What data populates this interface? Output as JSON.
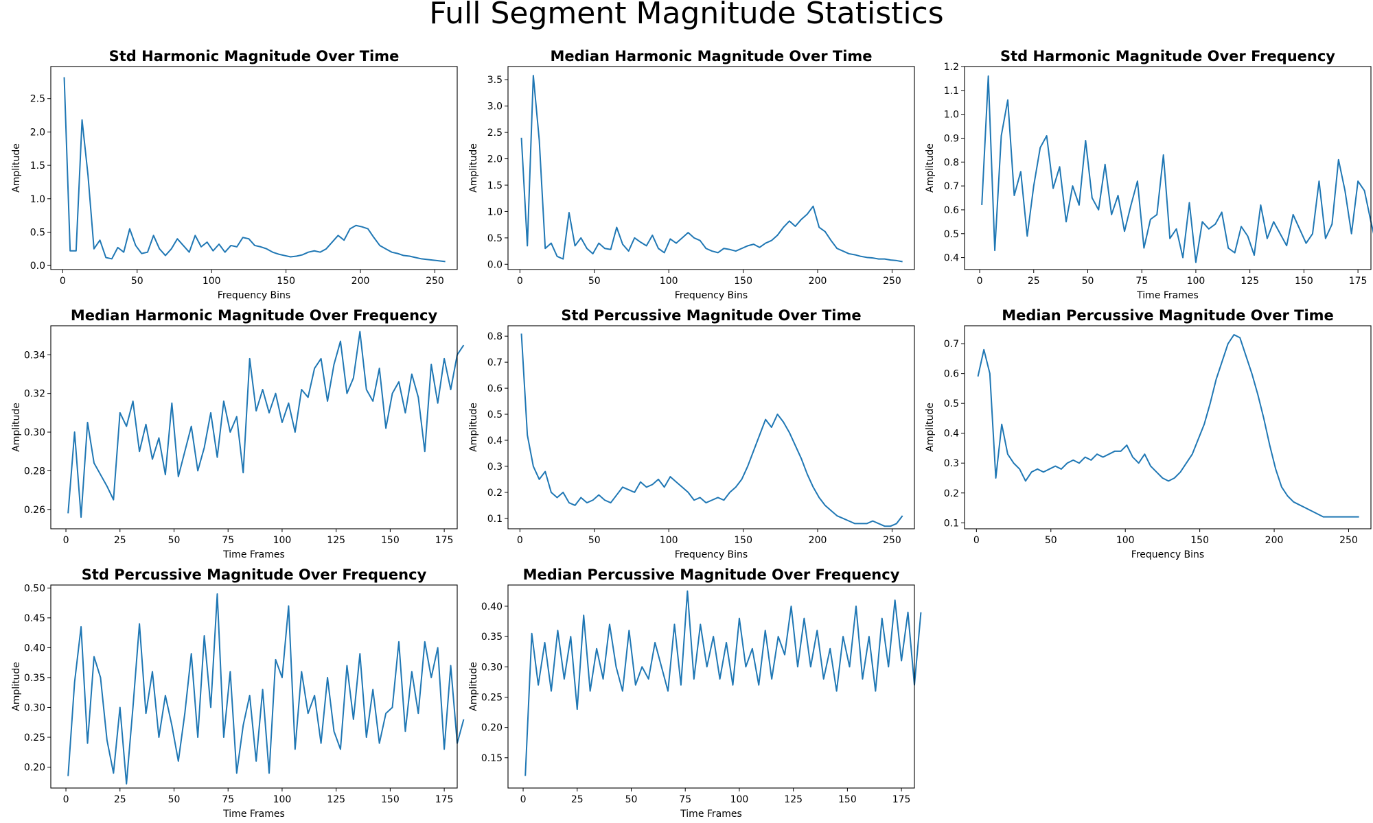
{
  "figure": {
    "title": "Full Segment Magnitude Statistics"
  },
  "chart_data": [
    {
      "type": "line",
      "title": "Std Harmonic Magnitude Over Time",
      "xlabel": "Frequency Bins",
      "ylabel": "Amplitude",
      "xlim": [
        -8,
        265
      ],
      "ylim": [
        -0.06,
        2.98
      ],
      "xticks": [
        0,
        50,
        100,
        150,
        200,
        250
      ],
      "yticks": [
        0.0,
        0.5,
        1.0,
        1.5,
        2.0,
        2.5
      ],
      "tick_decimals": 1,
      "color": "#1f77b4",
      "series": [
        {
          "x_start": 1,
          "x_step": 4,
          "values": [
            2.82,
            0.22,
            0.22,
            2.18,
            1.35,
            0.25,
            0.38,
            0.12,
            0.1,
            0.27,
            0.2,
            0.55,
            0.3,
            0.18,
            0.2,
            0.45,
            0.25,
            0.15,
            0.25,
            0.4,
            0.3,
            0.2,
            0.45,
            0.28,
            0.35,
            0.22,
            0.32,
            0.2,
            0.3,
            0.28,
            0.42,
            0.4,
            0.3,
            0.28,
            0.25,
            0.2,
            0.17,
            0.15,
            0.13,
            0.14,
            0.16,
            0.2,
            0.22,
            0.2,
            0.25,
            0.35,
            0.45,
            0.38,
            0.55,
            0.6,
            0.58,
            0.55,
            0.42,
            0.3,
            0.25,
            0.2,
            0.18,
            0.15,
            0.14,
            0.12,
            0.1,
            0.09,
            0.08,
            0.07,
            0.06
          ]
        }
      ]
    },
    {
      "type": "line",
      "title": "Median Harmonic Magnitude Over Time",
      "xlabel": "Frequency Bins",
      "ylabel": "Amplitude",
      "xlim": [
        -8,
        265
      ],
      "ylim": [
        -0.1,
        3.75
      ],
      "xticks": [
        0,
        50,
        100,
        150,
        200,
        250
      ],
      "yticks": [
        0.0,
        0.5,
        1.0,
        1.5,
        2.0,
        2.5,
        3.0,
        3.5
      ],
      "tick_decimals": 1,
      "color": "#1f77b4",
      "series": [
        {
          "x_start": 1,
          "x_step": 4,
          "values": [
            2.4,
            0.35,
            3.58,
            2.35,
            0.3,
            0.4,
            0.15,
            0.1,
            0.98,
            0.35,
            0.5,
            0.3,
            0.2,
            0.4,
            0.3,
            0.28,
            0.7,
            0.38,
            0.25,
            0.5,
            0.42,
            0.35,
            0.55,
            0.3,
            0.22,
            0.48,
            0.4,
            0.5,
            0.6,
            0.5,
            0.45,
            0.3,
            0.25,
            0.22,
            0.3,
            0.28,
            0.25,
            0.3,
            0.35,
            0.38,
            0.32,
            0.4,
            0.45,
            0.55,
            0.7,
            0.82,
            0.72,
            0.85,
            0.95,
            1.1,
            0.7,
            0.62,
            0.45,
            0.3,
            0.25,
            0.2,
            0.18,
            0.15,
            0.13,
            0.12,
            0.1,
            0.1,
            0.08,
            0.07,
            0.05
          ]
        }
      ]
    },
    {
      "type": "line",
      "title": "Std Harmonic Magnitude Over Frequency",
      "xlabel": "Time Frames",
      "ylabel": "Amplitude",
      "xlim": [
        -7,
        181
      ],
      "ylim": [
        0.35,
        1.2
      ],
      "xticks": [
        0,
        25,
        50,
        75,
        100,
        125,
        150,
        175
      ],
      "yticks": [
        0.4,
        0.5,
        0.6,
        0.7,
        0.8,
        0.9,
        1.0,
        1.1,
        1.2
      ],
      "tick_decimals": 1,
      "color": "#1f77b4",
      "series": [
        {
          "x_start": 1,
          "x_step": 3,
          "values": [
            0.62,
            1.16,
            0.43,
            0.91,
            1.06,
            0.66,
            0.76,
            0.49,
            0.7,
            0.86,
            0.91,
            0.69,
            0.78,
            0.55,
            0.7,
            0.62,
            0.89,
            0.65,
            0.6,
            0.79,
            0.58,
            0.66,
            0.51,
            0.62,
            0.72,
            0.44,
            0.56,
            0.58,
            0.83,
            0.48,
            0.52,
            0.4,
            0.63,
            0.38,
            0.55,
            0.52,
            0.54,
            0.59,
            0.44,
            0.42,
            0.53,
            0.49,
            0.41,
            0.62,
            0.48,
            0.55,
            0.5,
            0.45,
            0.58,
            0.52,
            0.46,
            0.5,
            0.72,
            0.48,
            0.54,
            0.81,
            0.68,
            0.5,
            0.72,
            0.68,
            0.55,
            0.43
          ]
        }
      ]
    },
    {
      "type": "line",
      "title": "Median Harmonic Magnitude Over Frequency",
      "xlabel": "Time Frames",
      "ylabel": "Amplitude",
      "xlim": [
        -7,
        181
      ],
      "ylim": [
        0.25,
        0.355
      ],
      "xticks": [
        0,
        25,
        50,
        75,
        100,
        125,
        150,
        175
      ],
      "yticks": [
        0.26,
        0.28,
        0.3,
        0.32,
        0.34
      ],
      "tick_decimals": 2,
      "color": "#1f77b4",
      "series": [
        {
          "x_start": 1,
          "x_step": 3,
          "values": [
            0.258,
            0.3,
            0.256,
            0.305,
            0.284,
            0.278,
            0.272,
            0.265,
            0.31,
            0.303,
            0.316,
            0.29,
            0.304,
            0.286,
            0.297,
            0.278,
            0.315,
            0.277,
            0.29,
            0.303,
            0.28,
            0.292,
            0.31,
            0.287,
            0.316,
            0.3,
            0.308,
            0.279,
            0.338,
            0.311,
            0.322,
            0.31,
            0.32,
            0.305,
            0.315,
            0.3,
            0.322,
            0.318,
            0.333,
            0.338,
            0.316,
            0.335,
            0.347,
            0.32,
            0.328,
            0.352,
            0.322,
            0.316,
            0.333,
            0.302,
            0.32,
            0.326,
            0.31,
            0.33,
            0.318,
            0.29,
            0.335,
            0.315,
            0.338,
            0.322,
            0.34,
            0.345
          ]
        }
      ]
    },
    {
      "type": "line",
      "title": "Std Percussive Magnitude Over Time",
      "xlabel": "Frequency Bins",
      "ylabel": "Amplitude",
      "xlim": [
        -8,
        265
      ],
      "ylim": [
        0.06,
        0.84
      ],
      "xticks": [
        0,
        50,
        100,
        150,
        200,
        250
      ],
      "yticks": [
        0.1,
        0.2,
        0.3,
        0.4,
        0.5,
        0.6,
        0.7,
        0.8
      ],
      "tick_decimals": 1,
      "color": "#1f77b4",
      "series": [
        {
          "x_start": 1,
          "x_step": 4,
          "values": [
            0.81,
            0.42,
            0.3,
            0.25,
            0.28,
            0.2,
            0.18,
            0.2,
            0.16,
            0.15,
            0.18,
            0.16,
            0.17,
            0.19,
            0.17,
            0.16,
            0.19,
            0.22,
            0.21,
            0.2,
            0.24,
            0.22,
            0.23,
            0.25,
            0.22,
            0.26,
            0.24,
            0.22,
            0.2,
            0.17,
            0.18,
            0.16,
            0.17,
            0.18,
            0.17,
            0.2,
            0.22,
            0.25,
            0.3,
            0.36,
            0.42,
            0.48,
            0.45,
            0.5,
            0.47,
            0.43,
            0.38,
            0.33,
            0.27,
            0.22,
            0.18,
            0.15,
            0.13,
            0.11,
            0.1,
            0.09,
            0.08,
            0.08,
            0.08,
            0.09,
            0.08,
            0.07,
            0.07,
            0.08,
            0.11
          ]
        }
      ]
    },
    {
      "type": "line",
      "title": "Median Percussive Magnitude Over Time",
      "xlabel": "Frequency Bins",
      "ylabel": "Amplitude",
      "xlim": [
        -8,
        265
      ],
      "ylim": [
        0.08,
        0.76
      ],
      "xticks": [
        0,
        50,
        100,
        150,
        200,
        250
      ],
      "yticks": [
        0.1,
        0.2,
        0.3,
        0.4,
        0.5,
        0.6,
        0.7
      ],
      "tick_decimals": 1,
      "color": "#1f77b4",
      "series": [
        {
          "x_start": 1,
          "x_step": 4,
          "values": [
            0.59,
            0.68,
            0.6,
            0.25,
            0.43,
            0.33,
            0.3,
            0.28,
            0.24,
            0.27,
            0.28,
            0.27,
            0.28,
            0.29,
            0.28,
            0.3,
            0.31,
            0.3,
            0.32,
            0.31,
            0.33,
            0.32,
            0.33,
            0.34,
            0.34,
            0.36,
            0.32,
            0.3,
            0.33,
            0.29,
            0.27,
            0.25,
            0.24,
            0.25,
            0.27,
            0.3,
            0.33,
            0.38,
            0.43,
            0.5,
            0.58,
            0.64,
            0.7,
            0.73,
            0.72,
            0.66,
            0.6,
            0.53,
            0.45,
            0.36,
            0.28,
            0.22,
            0.19,
            0.17,
            0.16,
            0.15,
            0.14,
            0.13,
            0.12,
            0.12,
            0.12,
            0.12,
            0.12,
            0.12,
            0.12
          ]
        }
      ]
    },
    {
      "type": "line",
      "title": "Std Percussive Magnitude Over Frequency",
      "xlabel": "Time Frames",
      "ylabel": "Amplitude",
      "xlim": [
        -7,
        181
      ],
      "ylim": [
        0.165,
        0.505
      ],
      "xticks": [
        0,
        25,
        50,
        75,
        100,
        125,
        150,
        175
      ],
      "yticks": [
        0.2,
        0.25,
        0.3,
        0.35,
        0.4,
        0.45,
        0.5
      ],
      "tick_decimals": 2,
      "color": "#1f77b4",
      "series": [
        {
          "x_start": 1,
          "x_step": 3,
          "values": [
            0.185,
            0.342,
            0.435,
            0.24,
            0.385,
            0.35,
            0.245,
            0.19,
            0.3,
            0.172,
            0.3,
            0.44,
            0.29,
            0.36,
            0.25,
            0.32,
            0.27,
            0.21,
            0.29,
            0.39,
            0.25,
            0.42,
            0.3,
            0.49,
            0.25,
            0.36,
            0.19,
            0.27,
            0.32,
            0.21,
            0.33,
            0.19,
            0.38,
            0.35,
            0.47,
            0.23,
            0.36,
            0.29,
            0.32,
            0.24,
            0.35,
            0.26,
            0.23,
            0.37,
            0.28,
            0.39,
            0.25,
            0.33,
            0.24,
            0.29,
            0.3,
            0.41,
            0.26,
            0.36,
            0.29,
            0.41,
            0.35,
            0.4,
            0.23,
            0.37,
            0.24,
            0.28
          ]
        }
      ]
    },
    {
      "type": "line",
      "title": "Median Percussive Magnitude Over Frequency",
      "xlabel": "Time Frames",
      "ylabel": "Amplitude",
      "xlim": [
        -7,
        181
      ],
      "ylim": [
        0.1,
        0.435
      ],
      "xticks": [
        0,
        25,
        50,
        75,
        100,
        125,
        150,
        175
      ],
      "yticks": [
        0.15,
        0.2,
        0.25,
        0.3,
        0.35,
        0.4
      ],
      "tick_decimals": 2,
      "color": "#1f77b4",
      "series": [
        {
          "x_start": 1,
          "x_step": 3,
          "values": [
            0.12,
            0.355,
            0.27,
            0.34,
            0.26,
            0.36,
            0.28,
            0.35,
            0.23,
            0.385,
            0.26,
            0.33,
            0.28,
            0.37,
            0.3,
            0.26,
            0.36,
            0.27,
            0.3,
            0.28,
            0.34,
            0.3,
            0.26,
            0.37,
            0.27,
            0.425,
            0.28,
            0.37,
            0.3,
            0.35,
            0.28,
            0.34,
            0.27,
            0.38,
            0.3,
            0.33,
            0.27,
            0.36,
            0.28,
            0.35,
            0.32,
            0.4,
            0.3,
            0.38,
            0.3,
            0.36,
            0.28,
            0.33,
            0.26,
            0.35,
            0.3,
            0.4,
            0.28,
            0.35,
            0.26,
            0.38,
            0.3,
            0.41,
            0.31,
            0.39,
            0.27,
            0.39
          ]
        }
      ]
    }
  ]
}
